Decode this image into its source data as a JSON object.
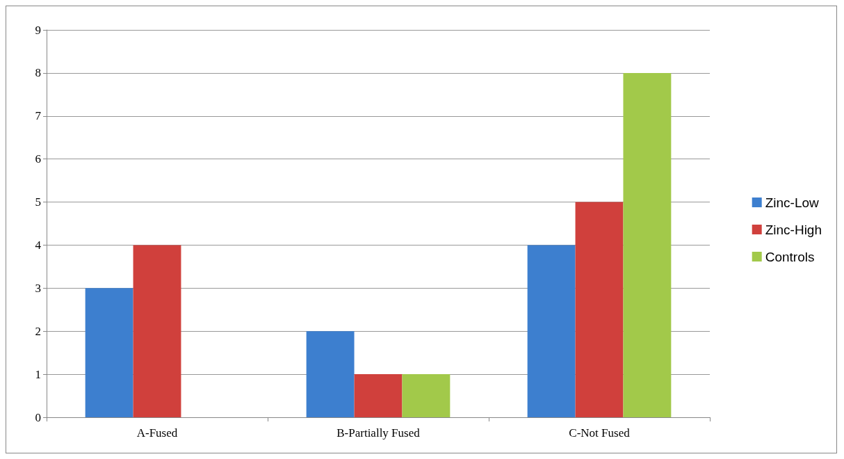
{
  "chart_data": {
    "type": "bar",
    "categories": [
      "A-Fused",
      "B-Partially Fused",
      "C-Not Fused"
    ],
    "series": [
      {
        "name": "Zinc-Low",
        "color": "#3d7fcf",
        "values": [
          3,
          2,
          4
        ]
      },
      {
        "name": "Zinc-High",
        "color": "#d0403c",
        "values": [
          4,
          1,
          5
        ]
      },
      {
        "name": "Controls",
        "color": "#a2c94a",
        "values": [
          0,
          1,
          8
        ]
      }
    ],
    "ylim": [
      0,
      9
    ],
    "yticks": [
      0,
      1,
      2,
      3,
      4,
      5,
      6,
      7,
      8,
      9
    ],
    "grid": "y",
    "legend": "right"
  }
}
